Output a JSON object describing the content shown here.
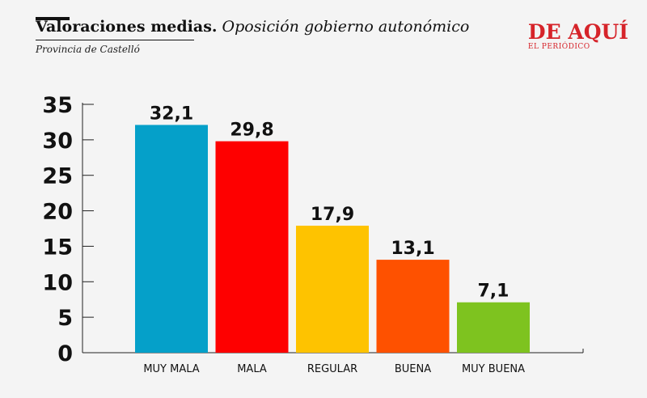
{
  "header": {
    "title_main": "Valoraciones medias.",
    "title_sub": "Oposición gobierno autonómico",
    "subtitle": "Provincia de Castelló"
  },
  "logo": {
    "name": "DE AQUÍ",
    "tagline": "EL PERIÓDICO",
    "color": "#d6242a"
  },
  "chart_data": {
    "type": "bar",
    "categories": [
      "MUY MALA",
      "MALA",
      "REGULAR",
      "BUENA",
      "MUY BUENA"
    ],
    "values": [
      32.1,
      29.8,
      17.9,
      13.1,
      7.1
    ],
    "value_labels": [
      "32,1",
      "29,8",
      "17,9",
      "13,1",
      "7,1"
    ],
    "colors": [
      "#05a0c9",
      "#fe0000",
      "#fec300",
      "#fe5100",
      "#7ec31f"
    ],
    "yticks": [
      0,
      5,
      10,
      15,
      20,
      25,
      30,
      35
    ],
    "ylim": [
      0,
      35
    ],
    "title": "",
    "xlabel": "",
    "ylabel": "",
    "grid": false,
    "legend": "none"
  }
}
